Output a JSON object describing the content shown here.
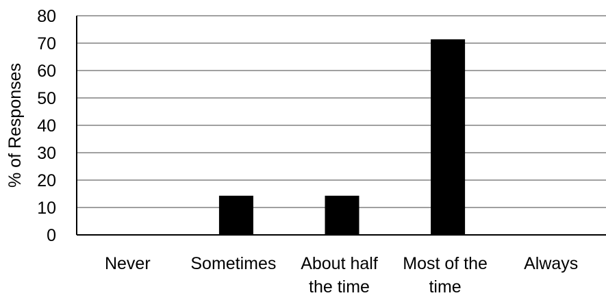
{
  "chart_data": {
    "type": "bar",
    "title": "",
    "xlabel": "",
    "ylabel": "% of Responses",
    "ylim": [
      0,
      80
    ],
    "yticks": [
      0,
      10,
      20,
      30,
      40,
      50,
      60,
      70,
      80
    ],
    "grid": true,
    "legend": "none",
    "categories": [
      [
        "Never"
      ],
      [
        "Sometimes"
      ],
      [
        "About half",
        "the time"
      ],
      [
        "Most of the",
        "time"
      ],
      [
        "Always"
      ]
    ],
    "values": [
      0,
      14.3,
      14.3,
      71.4,
      0
    ],
    "bar_color": "#000000",
    "grid_color": "#808080",
    "axis_color": "#000000"
  }
}
